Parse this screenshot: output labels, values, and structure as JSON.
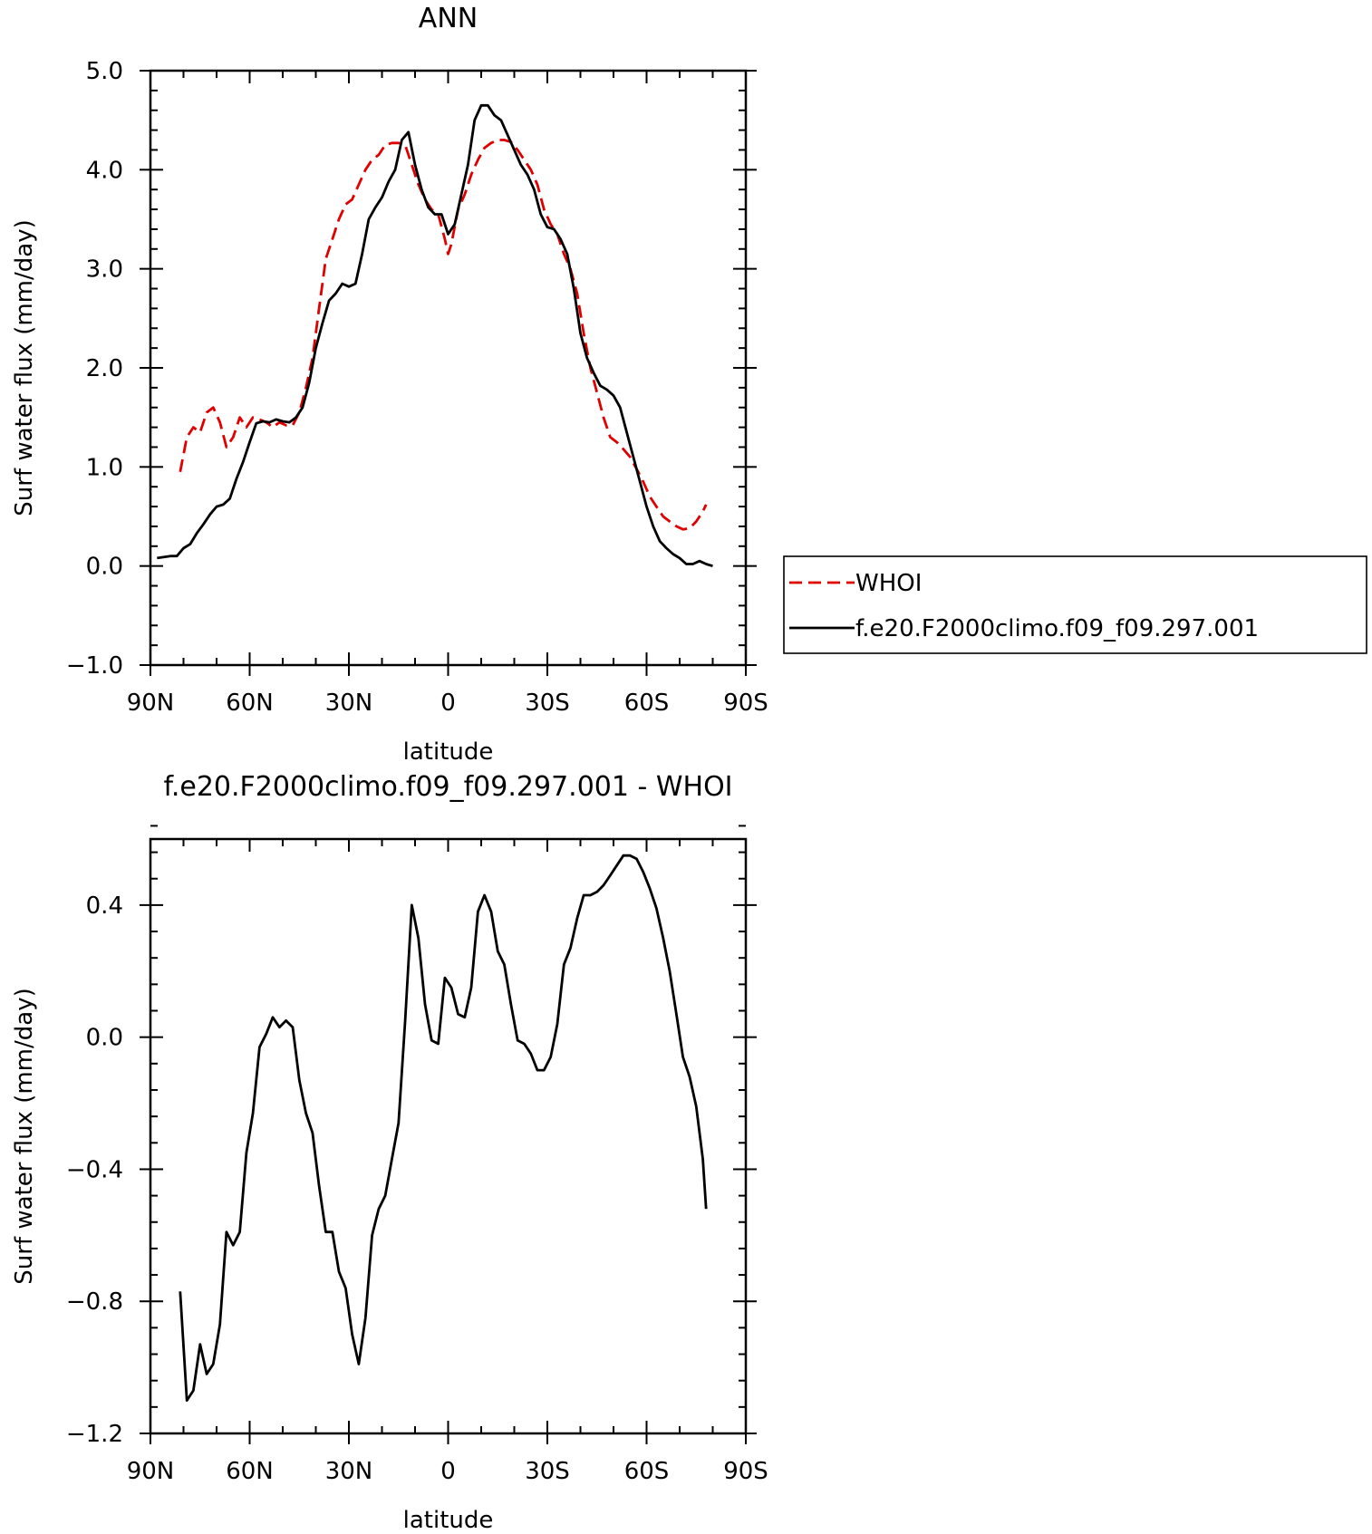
{
  "chart_data": [
    {
      "type": "line",
      "title": "ANN",
      "xlabel": "latitude",
      "ylabel": "Surf water flux (mm/day)",
      "xlim": [
        90,
        -90
      ],
      "ylim": [
        -1.0,
        5.0
      ],
      "xticks": [
        90,
        60,
        30,
        0,
        -30,
        -60,
        -90
      ],
      "xtick_labels": [
        "90N",
        "60N",
        "30N",
        "0",
        "30S",
        "60S",
        "90S"
      ],
      "yticks": [
        -1.0,
        0.0,
        1.0,
        2.0,
        3.0,
        4.0,
        5.0
      ],
      "ytick_labels": [
        "-1.0",
        "0.0",
        "1.0",
        "2.0",
        "3.0",
        "4.0",
        "5.0"
      ],
      "legend_position": "right",
      "series": [
        {
          "name": "WHOI",
          "color": "#e00000",
          "dash": true,
          "points": [
            [
              81,
              0.95
            ],
            [
              79,
              1.3
            ],
            [
              77,
              1.4
            ],
            [
              75,
              1.35
            ],
            [
              73,
              1.55
            ],
            [
              71,
              1.6
            ],
            [
              69,
              1.45
            ],
            [
              67,
              1.2
            ],
            [
              65,
              1.3
            ],
            [
              63,
              1.5
            ],
            [
              61,
              1.4
            ],
            [
              59,
              1.5
            ],
            [
              57,
              1.48
            ],
            [
              55,
              1.45
            ],
            [
              53,
              1.4
            ],
            [
              51,
              1.45
            ],
            [
              49,
              1.42
            ],
            [
              47,
              1.42
            ],
            [
              45,
              1.55
            ],
            [
              43,
              1.8
            ],
            [
              41,
              2.1
            ],
            [
              39,
              2.6
            ],
            [
              37,
              3.1
            ],
            [
              35,
              3.3
            ],
            [
              33,
              3.5
            ],
            [
              31,
              3.65
            ],
            [
              29,
              3.7
            ],
            [
              27,
              3.85
            ],
            [
              25,
              4.0
            ],
            [
              23,
              4.1
            ],
            [
              21,
              4.15
            ],
            [
              19,
              4.25
            ],
            [
              17,
              4.27
            ],
            [
              15,
              4.27
            ],
            [
              13,
              4.25
            ],
            [
              11,
              4.05
            ],
            [
              9,
              3.85
            ],
            [
              7,
              3.7
            ],
            [
              5,
              3.6
            ],
            [
              3,
              3.55
            ],
            [
              1,
              3.3
            ],
            [
              0,
              3.15
            ],
            [
              -1,
              3.25
            ],
            [
              -3,
              3.6
            ],
            [
              -5,
              3.75
            ],
            [
              -7,
              3.95
            ],
            [
              -9,
              4.1
            ],
            [
              -11,
              4.22
            ],
            [
              -13,
              4.27
            ],
            [
              -15,
              4.3
            ],
            [
              -17,
              4.3
            ],
            [
              -19,
              4.28
            ],
            [
              -21,
              4.2
            ],
            [
              -23,
              4.1
            ],
            [
              -25,
              4.0
            ],
            [
              -27,
              3.85
            ],
            [
              -29,
              3.6
            ],
            [
              -31,
              3.45
            ],
            [
              -33,
              3.35
            ],
            [
              -35,
              3.15
            ],
            [
              -37,
              3.0
            ],
            [
              -39,
              2.75
            ],
            [
              -41,
              2.35
            ],
            [
              -43,
              2.0
            ],
            [
              -45,
              1.75
            ],
            [
              -47,
              1.5
            ],
            [
              -49,
              1.3
            ],
            [
              -51,
              1.25
            ],
            [
              -53,
              1.18
            ],
            [
              -55,
              1.1
            ],
            [
              -57,
              0.98
            ],
            [
              -59,
              0.85
            ],
            [
              -61,
              0.7
            ],
            [
              -63,
              0.6
            ],
            [
              -65,
              0.5
            ],
            [
              -67,
              0.45
            ],
            [
              -69,
              0.4
            ],
            [
              -71,
              0.37
            ],
            [
              -73,
              0.38
            ],
            [
              -75,
              0.45
            ],
            [
              -77,
              0.55
            ],
            [
              -78,
              0.62
            ]
          ]
        },
        {
          "name": "f.e20.F2000climo.f09_f09.297.001",
          "color": "#000000",
          "dash": false,
          "points": [
            [
              88,
              0.08
            ],
            [
              84,
              0.1
            ],
            [
              82,
              0.1
            ],
            [
              80,
              0.18
            ],
            [
              78,
              0.22
            ],
            [
              76,
              0.33
            ],
            [
              74,
              0.42
            ],
            [
              72,
              0.52
            ],
            [
              70,
              0.6
            ],
            [
              68,
              0.62
            ],
            [
              66,
              0.68
            ],
            [
              64,
              0.88
            ],
            [
              62,
              1.05
            ],
            [
              60,
              1.25
            ],
            [
              58,
              1.44
            ],
            [
              56,
              1.46
            ],
            [
              54,
              1.45
            ],
            [
              52,
              1.48
            ],
            [
              50,
              1.46
            ],
            [
              48,
              1.45
            ],
            [
              46,
              1.5
            ],
            [
              44,
              1.6
            ],
            [
              42,
              1.85
            ],
            [
              40,
              2.2
            ],
            [
              38,
              2.45
            ],
            [
              36,
              2.68
            ],
            [
              34,
              2.75
            ],
            [
              32,
              2.85
            ],
            [
              30,
              2.82
            ],
            [
              28,
              2.85
            ],
            [
              26,
              3.15
            ],
            [
              24,
              3.5
            ],
            [
              22,
              3.62
            ],
            [
              20,
              3.72
            ],
            [
              18,
              3.88
            ],
            [
              16,
              4.0
            ],
            [
              14,
              4.3
            ],
            [
              12,
              4.38
            ],
            [
              10,
              4.05
            ],
            [
              8,
              3.8
            ],
            [
              6,
              3.62
            ],
            [
              4,
              3.55
            ],
            [
              2,
              3.55
            ],
            [
              0,
              3.35
            ],
            [
              -2,
              3.45
            ],
            [
              -4,
              3.75
            ],
            [
              -6,
              4.05
            ],
            [
              -8,
              4.5
            ],
            [
              -10,
              4.65
            ],
            [
              -12,
              4.65
            ],
            [
              -14,
              4.55
            ],
            [
              -16,
              4.5
            ],
            [
              -18,
              4.35
            ],
            [
              -20,
              4.2
            ],
            [
              -22,
              4.05
            ],
            [
              -24,
              3.95
            ],
            [
              -26,
              3.8
            ],
            [
              -28,
              3.55
            ],
            [
              -30,
              3.42
            ],
            [
              -32,
              3.4
            ],
            [
              -34,
              3.3
            ],
            [
              -36,
              3.15
            ],
            [
              -38,
              2.8
            ],
            [
              -40,
              2.35
            ],
            [
              -42,
              2.1
            ],
            [
              -44,
              1.95
            ],
            [
              -46,
              1.82
            ],
            [
              -48,
              1.78
            ],
            [
              -50,
              1.72
            ],
            [
              -52,
              1.6
            ],
            [
              -54,
              1.35
            ],
            [
              -56,
              1.1
            ],
            [
              -58,
              0.85
            ],
            [
              -60,
              0.6
            ],
            [
              -62,
              0.4
            ],
            [
              -64,
              0.25
            ],
            [
              -66,
              0.18
            ],
            [
              -68,
              0.12
            ],
            [
              -70,
              0.08
            ],
            [
              -72,
              0.02
            ],
            [
              -74,
              0.02
            ],
            [
              -76,
              0.05
            ],
            [
              -78,
              0.02
            ],
            [
              -80,
              0.0
            ]
          ]
        }
      ]
    },
    {
      "type": "line",
      "title": "f.e20.F2000climo.f09_f09.297.001 - WHOI",
      "xlabel": "latitude",
      "ylabel": "Surf water flux (mm/day)",
      "xlim": [
        90,
        -90
      ],
      "ylim": [
        -1.2,
        0.6
      ],
      "xticks": [
        90,
        60,
        30,
        0,
        -30,
        -60,
        -90
      ],
      "xtick_labels": [
        "90N",
        "60N",
        "30N",
        "0",
        "30S",
        "60S",
        "90S"
      ],
      "yticks": [
        -1.2,
        -0.8,
        -0.4,
        0.0,
        0.4
      ],
      "ytick_labels": [
        "-1.2",
        "-0.8",
        "-0.4",
        "0.0",
        "0.4"
      ],
      "series": [
        {
          "name": "",
          "color": "#000000",
          "dash": false,
          "points": [
            [
              81,
              -0.77
            ],
            [
              79,
              -1.1
            ],
            [
              77,
              -1.07
            ],
            [
              75,
              -0.93
            ],
            [
              73,
              -1.02
            ],
            [
              71,
              -0.99
            ],
            [
              69,
              -0.87
            ],
            [
              67,
              -0.59
            ],
            [
              65,
              -0.63
            ],
            [
              63,
              -0.59
            ],
            [
              61,
              -0.35
            ],
            [
              59,
              -0.23
            ],
            [
              57,
              -0.03
            ],
            [
              55,
              0.01
            ],
            [
              53,
              0.06
            ],
            [
              51,
              0.03
            ],
            [
              49,
              0.05
            ],
            [
              47,
              0.03
            ],
            [
              45,
              -0.13
            ],
            [
              43,
              -0.23
            ],
            [
              41,
              -0.29
            ],
            [
              39,
              -0.45
            ],
            [
              37,
              -0.59
            ],
            [
              35,
              -0.59
            ],
            [
              33,
              -0.71
            ],
            [
              31,
              -0.76
            ],
            [
              29,
              -0.9
            ],
            [
              27,
              -0.99
            ],
            [
              25,
              -0.85
            ],
            [
              23,
              -0.6
            ],
            [
              21,
              -0.52
            ],
            [
              19,
              -0.48
            ],
            [
              17,
              -0.37
            ],
            [
              15,
              -0.26
            ],
            [
              13,
              0.05
            ],
            [
              11,
              0.4
            ],
            [
              9,
              0.3
            ],
            [
              7,
              0.1
            ],
            [
              5,
              -0.01
            ],
            [
              3,
              -0.02
            ],
            [
              1,
              0.18
            ],
            [
              -1,
              0.15
            ],
            [
              -3,
              0.07
            ],
            [
              -5,
              0.06
            ],
            [
              -7,
              0.15
            ],
            [
              -9,
              0.38
            ],
            [
              -11,
              0.43
            ],
            [
              -13,
              0.38
            ],
            [
              -15,
              0.26
            ],
            [
              -17,
              0.22
            ],
            [
              -19,
              0.1
            ],
            [
              -21,
              -0.01
            ],
            [
              -23,
              -0.02
            ],
            [
              -25,
              -0.05
            ],
            [
              -27,
              -0.1
            ],
            [
              -29,
              -0.1
            ],
            [
              -31,
              -0.06
            ],
            [
              -33,
              0.04
            ],
            [
              -35,
              0.22
            ],
            [
              -37,
              0.27
            ],
            [
              -39,
              0.36
            ],
            [
              -41,
              0.43
            ],
            [
              -43,
              0.43
            ],
            [
              -45,
              0.44
            ],
            [
              -47,
              0.46
            ],
            [
              -49,
              0.49
            ],
            [
              -51,
              0.52
            ],
            [
              -53,
              0.55
            ],
            [
              -55,
              0.55
            ],
            [
              -57,
              0.54
            ],
            [
              -59,
              0.5
            ],
            [
              -61,
              0.45
            ],
            [
              -63,
              0.39
            ],
            [
              -65,
              0.3
            ],
            [
              -67,
              0.2
            ],
            [
              -69,
              0.07
            ],
            [
              -71,
              -0.06
            ],
            [
              -73,
              -0.12
            ],
            [
              -75,
              -0.21
            ],
            [
              -77,
              -0.37
            ],
            [
              -78,
              -0.52
            ]
          ]
        }
      ]
    }
  ]
}
